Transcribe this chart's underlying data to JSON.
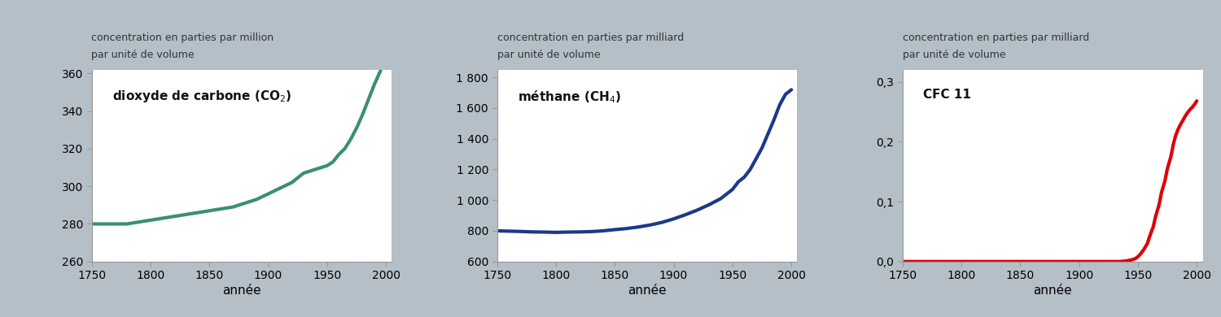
{
  "background_color": "#b5bfc8",
  "plot_bg": "#ffffff",
  "fig_width": 15.0,
  "fig_height": 3.9,
  "panels": [
    {
      "ylabel_line1": "concentration en parties par million",
      "ylabel_line2": "par unité de volume",
      "label": "dioxyde de carbone (CO₂)",
      "color": "#3a9070",
      "linewidth": 3.0,
      "xlim": [
        1750,
        2005
      ],
      "ylim": [
        260,
        362
      ],
      "yticks": [
        260,
        280,
        300,
        320,
        340,
        360
      ],
      "ytick_labels": [
        "260",
        "280",
        "300",
        "320",
        "340",
        "360"
      ],
      "xticks": [
        1750,
        1800,
        1850,
        1900,
        1950,
        2000
      ],
      "xlabel": "année",
      "x": [
        1750,
        1760,
        1770,
        1780,
        1790,
        1800,
        1810,
        1820,
        1830,
        1840,
        1850,
        1860,
        1870,
        1880,
        1890,
        1900,
        1910,
        1920,
        1930,
        1940,
        1950,
        1955,
        1960,
        1965,
        1970,
        1975,
        1980,
        1985,
        1990,
        1995,
        2000
      ],
      "y": [
        280,
        280,
        280,
        280,
        281,
        282,
        283,
        284,
        285,
        286,
        287,
        288,
        289,
        291,
        293,
        296,
        299,
        302,
        307,
        309,
        311,
        313,
        317,
        320,
        325,
        331,
        338,
        346,
        354,
        361,
        370
      ]
    },
    {
      "ylabel_line1": "concentration en parties par milliard",
      "ylabel_line2": "par unité de volume",
      "label": "méthane (CH₄)",
      "color": "#1a3a8a",
      "linewidth": 3.0,
      "xlim": [
        1750,
        2005
      ],
      "ylim": [
        600,
        1850
      ],
      "yticks": [
        600,
        800,
        1000,
        1200,
        1400,
        1600,
        1800
      ],
      "ytick_labels": [
        "600",
        "800",
        "1 000",
        "1 200",
        "1 400",
        "1 600",
        "1 800"
      ],
      "xticks": [
        1750,
        1800,
        1850,
        1900,
        1950,
        2000
      ],
      "xlabel": "année",
      "x": [
        1750,
        1760,
        1770,
        1780,
        1790,
        1800,
        1810,
        1820,
        1830,
        1840,
        1850,
        1860,
        1870,
        1880,
        1890,
        1900,
        1910,
        1920,
        1930,
        1940,
        1950,
        1955,
        1960,
        1965,
        1970,
        1975,
        1980,
        1985,
        1990,
        1995,
        2000
      ],
      "y": [
        800,
        798,
        796,
        793,
        792,
        790,
        792,
        793,
        795,
        800,
        808,
        815,
        825,
        838,
        855,
        878,
        905,
        935,
        970,
        1010,
        1070,
        1120,
        1150,
        1200,
        1270,
        1340,
        1430,
        1520,
        1620,
        1690,
        1720
      ]
    },
    {
      "ylabel_line1": "concentration en parties par milliard",
      "ylabel_line2": "par unité de volume",
      "label": "CFC 11",
      "color": "#dd0000",
      "linewidth": 3.0,
      "xlim": [
        1750,
        2005
      ],
      "ylim": [
        0.0,
        0.32
      ],
      "yticks": [
        0.0,
        0.1,
        0.2,
        0.3
      ],
      "ytick_labels": [
        "0,0",
        "0,1",
        "0,2",
        "0,3"
      ],
      "xticks": [
        1750,
        1800,
        1850,
        1900,
        1950,
        2000
      ],
      "xlabel": "année",
      "x": [
        1750,
        1800,
        1850,
        1900,
        1920,
        1930,
        1935,
        1940,
        1945,
        1948,
        1950,
        1952,
        1955,
        1958,
        1960,
        1963,
        1965,
        1968,
        1970,
        1973,
        1975,
        1978,
        1980,
        1982,
        1984,
        1986,
        1988,
        1990,
        1992,
        1994,
        1996,
        1998,
        2000
      ],
      "y": [
        0.0,
        0.0,
        0.0,
        0.0,
        0.0,
        0.0,
        0.0,
        0.001,
        0.003,
        0.005,
        0.008,
        0.012,
        0.02,
        0.03,
        0.042,
        0.058,
        0.075,
        0.095,
        0.115,
        0.135,
        0.155,
        0.175,
        0.195,
        0.21,
        0.22,
        0.228,
        0.235,
        0.242,
        0.248,
        0.253,
        0.257,
        0.262,
        0.268
      ]
    }
  ]
}
